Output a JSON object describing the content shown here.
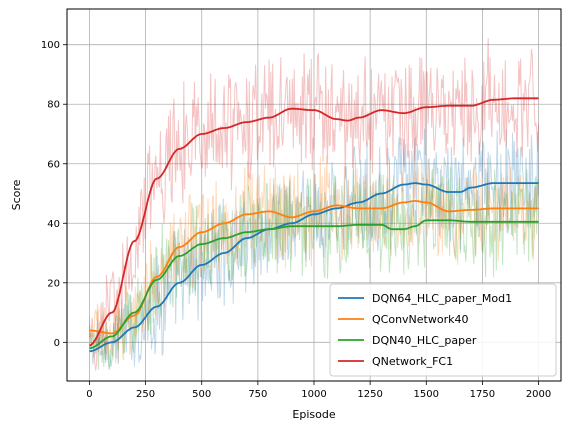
{
  "chart_data": {
    "type": "line",
    "xlabel": "Episode",
    "ylabel": "Score",
    "xlim": [
      -100,
      2100
    ],
    "ylim": [
      -13,
      112
    ],
    "xticks": [
      0,
      250,
      500,
      750,
      1000,
      1250,
      1500,
      1750,
      2000
    ],
    "yticks": [
      0,
      20,
      40,
      60,
      80,
      100
    ],
    "grid": true,
    "legend_position": "lower-right",
    "series": [
      {
        "name": "DQN64_HLC_paper_Mod1",
        "color": "#1f77b4",
        "smoothed": {
          "x": [
            0,
            100,
            200,
            300,
            400,
            500,
            600,
            700,
            800,
            900,
            1000,
            1100,
            1200,
            1300,
            1400,
            1450,
            1500,
            1600,
            1650,
            1700,
            1800,
            1900,
            2000
          ],
          "y": [
            -3,
            0,
            5,
            12,
            20,
            26,
            30,
            35,
            38,
            40,
            43,
            45,
            47,
            50,
            53,
            53.5,
            53,
            50.5,
            50.5,
            52,
            53.5,
            53.5,
            53.5
          ]
        },
        "noise": {
          "spread": 16,
          "start": 5
        }
      },
      {
        "name": "QConvNetwork40",
        "color": "#ff7f0e",
        "smoothed": {
          "x": [
            0,
            100,
            200,
            300,
            400,
            500,
            600,
            700,
            800,
            900,
            1000,
            1100,
            1200,
            1300,
            1400,
            1450,
            1500,
            1600,
            1700,
            1800,
            1900,
            2000
          ],
          "y": [
            4,
            3,
            9,
            22,
            32,
            37,
            40,
            43,
            44,
            42,
            44,
            46,
            45,
            45,
            47,
            47.5,
            47,
            44,
            44.5,
            45,
            45,
            45
          ]
        },
        "noise": {
          "spread": 15,
          "start": 8
        }
      },
      {
        "name": "DQN40_HLC_paper",
        "color": "#2ca02c",
        "smoothed": {
          "x": [
            0,
            100,
            200,
            300,
            400,
            500,
            600,
            700,
            800,
            900,
            1000,
            1100,
            1200,
            1300,
            1350,
            1400,
            1450,
            1500,
            1600,
            1700,
            1800,
            1900,
            2000
          ],
          "y": [
            -2,
            2,
            10,
            21,
            29,
            33,
            35,
            37,
            38,
            39,
            39,
            39,
            39.5,
            39.5,
            38,
            38,
            39,
            41,
            41,
            40.5,
            40.5,
            40.5,
            40.5
          ]
        },
        "noise": {
          "spread": 15,
          "start": 6
        }
      },
      {
        "name": "QNetwork_FC1",
        "color": "#d62728",
        "smoothed": {
          "x": [
            0,
            100,
            200,
            300,
            400,
            500,
            600,
            700,
            800,
            900,
            1000,
            1100,
            1150,
            1200,
            1300,
            1400,
            1500,
            1600,
            1700,
            1800,
            1900,
            2000
          ],
          "y": [
            -1,
            10,
            34,
            55,
            65,
            70,
            72,
            74,
            75.5,
            78.5,
            78,
            75,
            74.5,
            75.5,
            78,
            77,
            79,
            79.5,
            79.5,
            81.5,
            82,
            82
          ]
        },
        "noise": {
          "spread": 18,
          "start": 10
        }
      }
    ]
  }
}
